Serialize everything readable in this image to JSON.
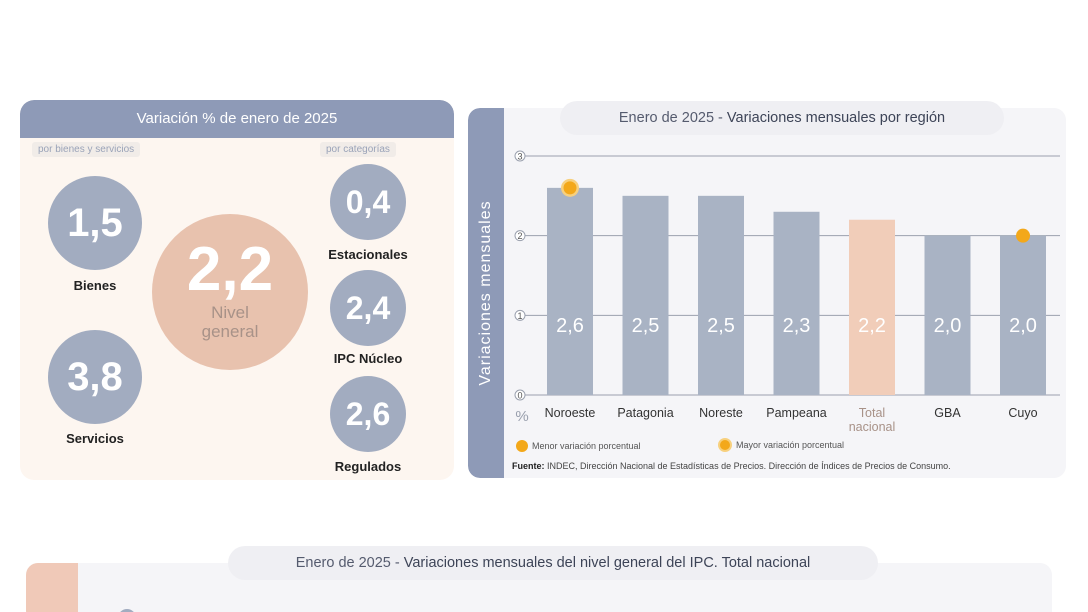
{
  "left_panel": {
    "title": "Variación % de enero de 2025",
    "sub_left": "por bienes y servicios",
    "sub_right": "por categorías",
    "bienes": {
      "value": "1,5",
      "label": "Bienes"
    },
    "servicios": {
      "value": "3,8",
      "label": "Servicios"
    },
    "nivel_general": {
      "value": "2,2",
      "label_line1": "Nivel",
      "label_line2": "general"
    },
    "estacionales": {
      "value": "0,4",
      "label": "Estacionales"
    },
    "ipc_nucleo": {
      "value": "2,4",
      "label": "IPC Núcleo"
    },
    "regulados": {
      "value": "2,6",
      "label": "Regulados"
    }
  },
  "right_panel": {
    "title_prefix": "Enero de 2025",
    "title_sep": " - ",
    "title_main": "Variaciones mensuales por región",
    "side_label": "Variaciones mensuales",
    "legend_min": "Menor variación porcentual",
    "legend_max": "Mayor variación porcentual",
    "source_label": "Fuente:",
    "source_text": " INDEC, Dirección Nacional de Estadísticas de Precios. Dirección de Índices de Precios de Consumo."
  },
  "chart_data": {
    "type": "bar",
    "title": "Enero de 2025 - Variaciones mensuales por región",
    "ylabel": "%",
    "ylim": [
      0,
      3
    ],
    "yticks": [
      "0",
      "1",
      "2",
      "3"
    ],
    "categories": [
      "Noroeste",
      "Patagonia",
      "Noreste",
      "Pampeana",
      "Total nacional",
      "GBA",
      "Cuyo"
    ],
    "category_lines": [
      [
        "Noroeste"
      ],
      [
        "Patagonia"
      ],
      [
        "Noreste"
      ],
      [
        "Pampeana"
      ],
      [
        "Total",
        "nacional"
      ],
      [
        "GBA"
      ],
      [
        "Cuyo"
      ]
    ],
    "values": [
      2.6,
      2.5,
      2.5,
      2.3,
      2.2,
      2.0,
      2.0
    ],
    "value_labels": [
      "2,6",
      "2,5",
      "2,5",
      "2,3",
      "2,2",
      "2,0",
      "2,0"
    ],
    "highlight_index": 4,
    "max_marker_index": 0,
    "min_marker_index": 6,
    "bar_color": "#a9b3c4",
    "highlight_color": "#f1cdb9",
    "marker_color": "#f3a81a"
  },
  "bottom": {
    "title_prefix": "Enero de 2025",
    "title_sep": " - ",
    "title_main": "Variaciones mensuales del nivel general del IPC. Total nacional"
  }
}
